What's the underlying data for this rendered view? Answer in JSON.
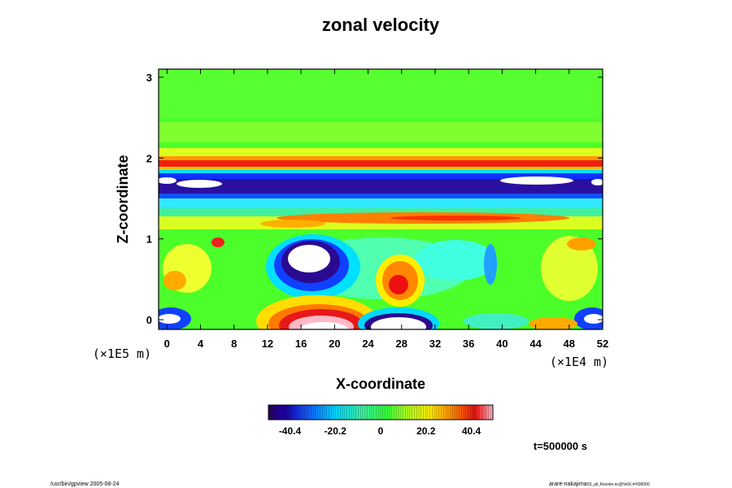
{
  "chart_data": {
    "type": "heatmap",
    "title": "zonal velocity",
    "xlabel": "X-coordinate",
    "ylabel": "Z-coordinate",
    "x_scale_note": "(×1E4 m)",
    "y_scale_note": "(×1E5 m)",
    "xlim": [
      -1,
      52
    ],
    "ylim": [
      -0.12,
      3.1
    ],
    "x_ticks": [
      "0",
      "4",
      "8",
      "12",
      "16",
      "20",
      "24",
      "28",
      "32",
      "36",
      "40",
      "44",
      "48",
      "52"
    ],
    "y_ticks": [
      "0",
      "1",
      "2",
      "3"
    ],
    "colorbar": {
      "range": [
        -50,
        50
      ],
      "tick_labels": [
        "-40.4",
        "-20.2",
        "0",
        "20.2",
        "40.4"
      ]
    },
    "annotation": "t=500000 s",
    "footer_left": "/usr/bin/gpview 2005-08-24",
    "footer_right": "arare-nakajima",
    "footer_right_small": "03_all_Kessler.nc@VelX,t=500000"
  }
}
